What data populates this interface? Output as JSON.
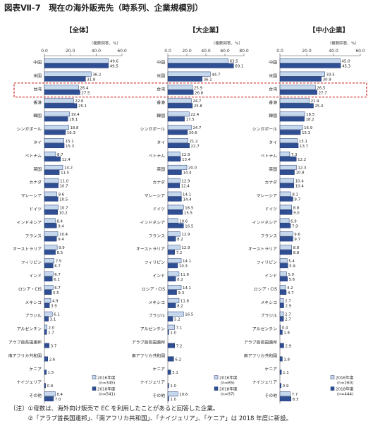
{
  "title": "図表Ⅶ-7　現在の海外販売先（時系列、企業規模別）",
  "countries": [
    "中国",
    "米国",
    "台湾",
    "香港",
    "韓国",
    "シンガポール",
    "タイ",
    "ベトナム",
    "英国",
    "カナダ",
    "マレーシア",
    "ドイツ",
    "インドネシア",
    "フランス",
    "オーストラリア",
    "フィリピン",
    "インド",
    "ロシア・CIS",
    "メキシコ",
    "ブラジル",
    "アルゼンチン",
    "アラブ首長国連邦",
    "南アフリカ共和国",
    "ケニア",
    "ナイジェリア",
    "その他"
  ],
  "axis_unit": "（複数回答、%）",
  "highlight_country": "台湾",
  "colors": {
    "series_2016": "#c5d8ee",
    "series_2018": "#2f4f95",
    "bar_stroke": "#1f3568",
    "highlight": "#d11f1f"
  },
  "chart_data": [
    {
      "type": "bar",
      "title": "【全体】",
      "xlim": [
        0,
        60
      ],
      "xticks": [
        "0.0",
        "20.0",
        "40.0",
        "60.0"
      ],
      "series": [
        {
          "name": "2016年度 (n=345)",
          "values": [
            49.6,
            36.2,
            26.4,
            22.6,
            19.4,
            18.8,
            15.1,
            8.7,
            14.2,
            11.0,
            9.6,
            10.7,
            8.4,
            10.4,
            9.9,
            7.5,
            6.7,
            6.7,
            4.9,
            6.1,
            2.0,
            null,
            null,
            null,
            null,
            8.4
          ]
        },
        {
          "name": "2018年度 (n=541)",
          "values": [
            49.5,
            31.8,
            27.5,
            25.1,
            18.1,
            16.3,
            15.3,
            12.4,
            11.5,
            10.7,
            10.5,
            10.2,
            9.4,
            9.4,
            8.5,
            6.7,
            6.1,
            5.5,
            3.9,
            3.1,
            1.7,
            3.7,
            2.6,
            1.5,
            0.9,
            7.0
          ]
        }
      ],
      "legend": [
        "2016年度",
        "(n=345)",
        "2018年度",
        "(n=541)"
      ]
    },
    {
      "type": "bar",
      "title": "【大企業】",
      "xlim": [
        0,
        80
      ],
      "xticks": [
        "0.0",
        "20.0",
        "40.0",
        "60.0",
        "80.0"
      ],
      "series": [
        {
          "name": "2016年度 (n=85)",
          "values": [
            63.5,
            44.7,
            25.9,
            24.7,
            22.4,
            24.7,
            21.2,
            12.9,
            20.0,
            12.9,
            14.1,
            16.5,
            10.6,
            12.9,
            12.9,
            14.1,
            11.8,
            14.1,
            11.8,
            16.5,
            7.1,
            null,
            null,
            null,
            null,
            10.6
          ]
        },
        {
          "name": "2018年度 (n=97)",
          "values": [
            69.1,
            36.1,
            26.8,
            25.8,
            17.5,
            20.6,
            22.7,
            13.4,
            14.4,
            12.4,
            14.4,
            15.5,
            16.5,
            8.2,
            7.2,
            10.3,
            8.2,
            9.3,
            8.2,
            5.2,
            1.0,
            7.2,
            6.2,
            3.1,
            1.0,
            1.0
          ]
        }
      ],
      "legend": [
        "2016年度",
        "(n=85)",
        "2018年度",
        "(n=97)"
      ]
    },
    {
      "type": "bar",
      "title": "【中小企業】",
      "xlim": [
        0,
        60
      ],
      "xticks": [
        "0.0",
        "20.0",
        "40.0",
        "60.0"
      ],
      "series": [
        {
          "name": "2016年度 (n=260)",
          "values": [
            45.0,
            33.5,
            26.5,
            21.9,
            18.5,
            16.9,
            13.1,
            7.3,
            12.3,
            10.4,
            8.1,
            8.8,
            6.9,
            9.6,
            8.8,
            5.4,
            5.0,
            4.2,
            2.7,
            2.7,
            0.4,
            null,
            null,
            null,
            null,
            7.7
          ]
        },
        {
          "name": "2018年度 (n=444)",
          "values": [
            45.3,
            30.9,
            27.7,
            25.0,
            18.2,
            15.3,
            13.7,
            12.2,
            10.8,
            10.4,
            9.7,
            9.0,
            7.9,
            9.7,
            8.8,
            5.9,
            5.6,
            4.7,
            2.9,
            2.7,
            1.8,
            2.9,
            1.8,
            1.1,
            0.9,
            8.3
          ]
        }
      ],
      "legend": [
        "2016年度",
        "(n=260)",
        "2018年度",
        "(n=444)"
      ]
    }
  ],
  "notes": [
    "〔注〕①母数は、海外向け販売で EC を利用したことがあると回答した企業。",
    "　　　②「アラブ首長国連邦」、「南アフリカ共和国」、「ナイジェリア」、「ケニア」は 2018 年度に新設。"
  ]
}
